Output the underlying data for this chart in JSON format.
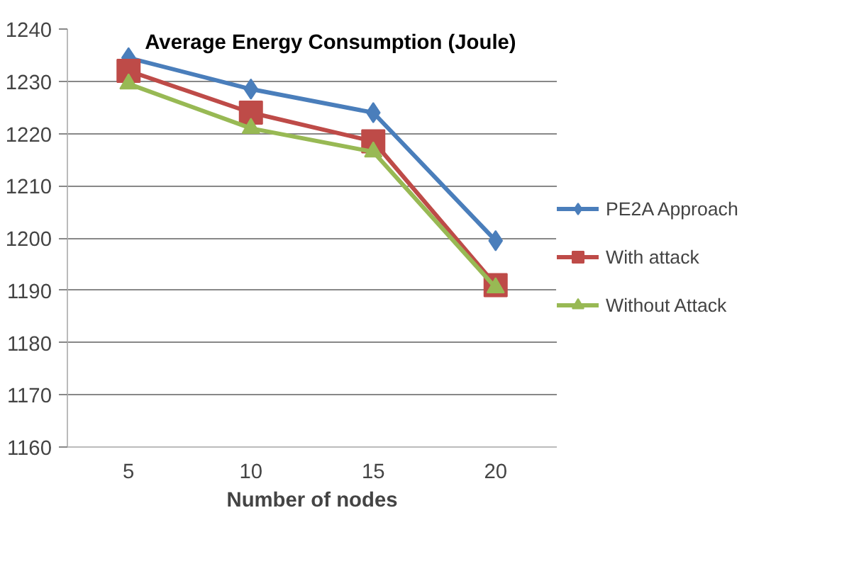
{
  "chart_data": {
    "type": "line",
    "title": "Average Energy Consumption  (Joule)",
    "xlabel": "Number of nodes",
    "categories": [
      "5",
      "10",
      "15",
      "20"
    ],
    "series": [
      {
        "name": "PE2A Approach",
        "color": "#4a7ebb",
        "marker": "diamond",
        "values": [
          1234.5,
          1228.5,
          1224,
          1199.5
        ]
      },
      {
        "name": "With attack",
        "color": "#be4b48",
        "marker": "square",
        "values": [
          1232,
          1224,
          1218.5,
          1191
        ]
      },
      {
        "name": "Without Attack",
        "color": "#98b954",
        "marker": "triangle",
        "values": [
          1229.5,
          1221,
          1216.5,
          1190.5
        ]
      }
    ],
    "ylim": [
      1160,
      1240
    ],
    "yticks": [
      1160,
      1170,
      1180,
      1190,
      1200,
      1210,
      1220,
      1230,
      1240
    ],
    "grid": "y",
    "legend": "right",
    "line_style": "solid"
  }
}
